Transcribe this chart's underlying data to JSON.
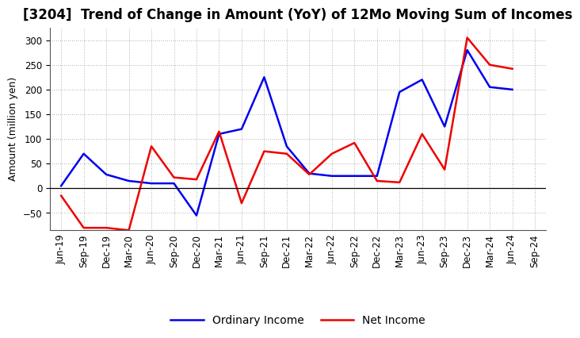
{
  "title": "[3204]  Trend of Change in Amount (YoY) of 12Mo Moving Sum of Incomes",
  "ylabel": "Amount (million yen)",
  "x_labels": [
    "Jun-19",
    "Sep-19",
    "Dec-19",
    "Mar-20",
    "Jun-20",
    "Sep-20",
    "Dec-20",
    "Mar-21",
    "Jun-21",
    "Sep-21",
    "Dec-21",
    "Mar-22",
    "Jun-22",
    "Sep-22",
    "Dec-22",
    "Mar-23",
    "Jun-23",
    "Sep-23",
    "Dec-23",
    "Mar-24",
    "Jun-24",
    "Sep-24"
  ],
  "ordinary_income": [
    5,
    70,
    28,
    15,
    10,
    10,
    -55,
    110,
    120,
    225,
    85,
    30,
    25,
    25,
    25,
    195,
    220,
    125,
    280,
    205,
    200,
    null
  ],
  "net_income": [
    -15,
    -80,
    -80,
    -85,
    85,
    22,
    18,
    115,
    -30,
    75,
    70,
    28,
    70,
    92,
    15,
    12,
    110,
    38,
    305,
    250,
    242,
    null
  ],
  "ordinary_income_color": "#0000ee",
  "net_income_color": "#ee0000",
  "background_color": "#ffffff",
  "grid_color": "#999999",
  "ylim": [
    -85,
    325
  ],
  "yticks": [
    -50,
    0,
    50,
    100,
    150,
    200,
    250,
    300
  ],
  "legend_ordinary": "Ordinary Income",
  "legend_net": "Net Income",
  "title_fontsize": 12,
  "axis_fontsize": 9,
  "tick_fontsize": 8.5
}
